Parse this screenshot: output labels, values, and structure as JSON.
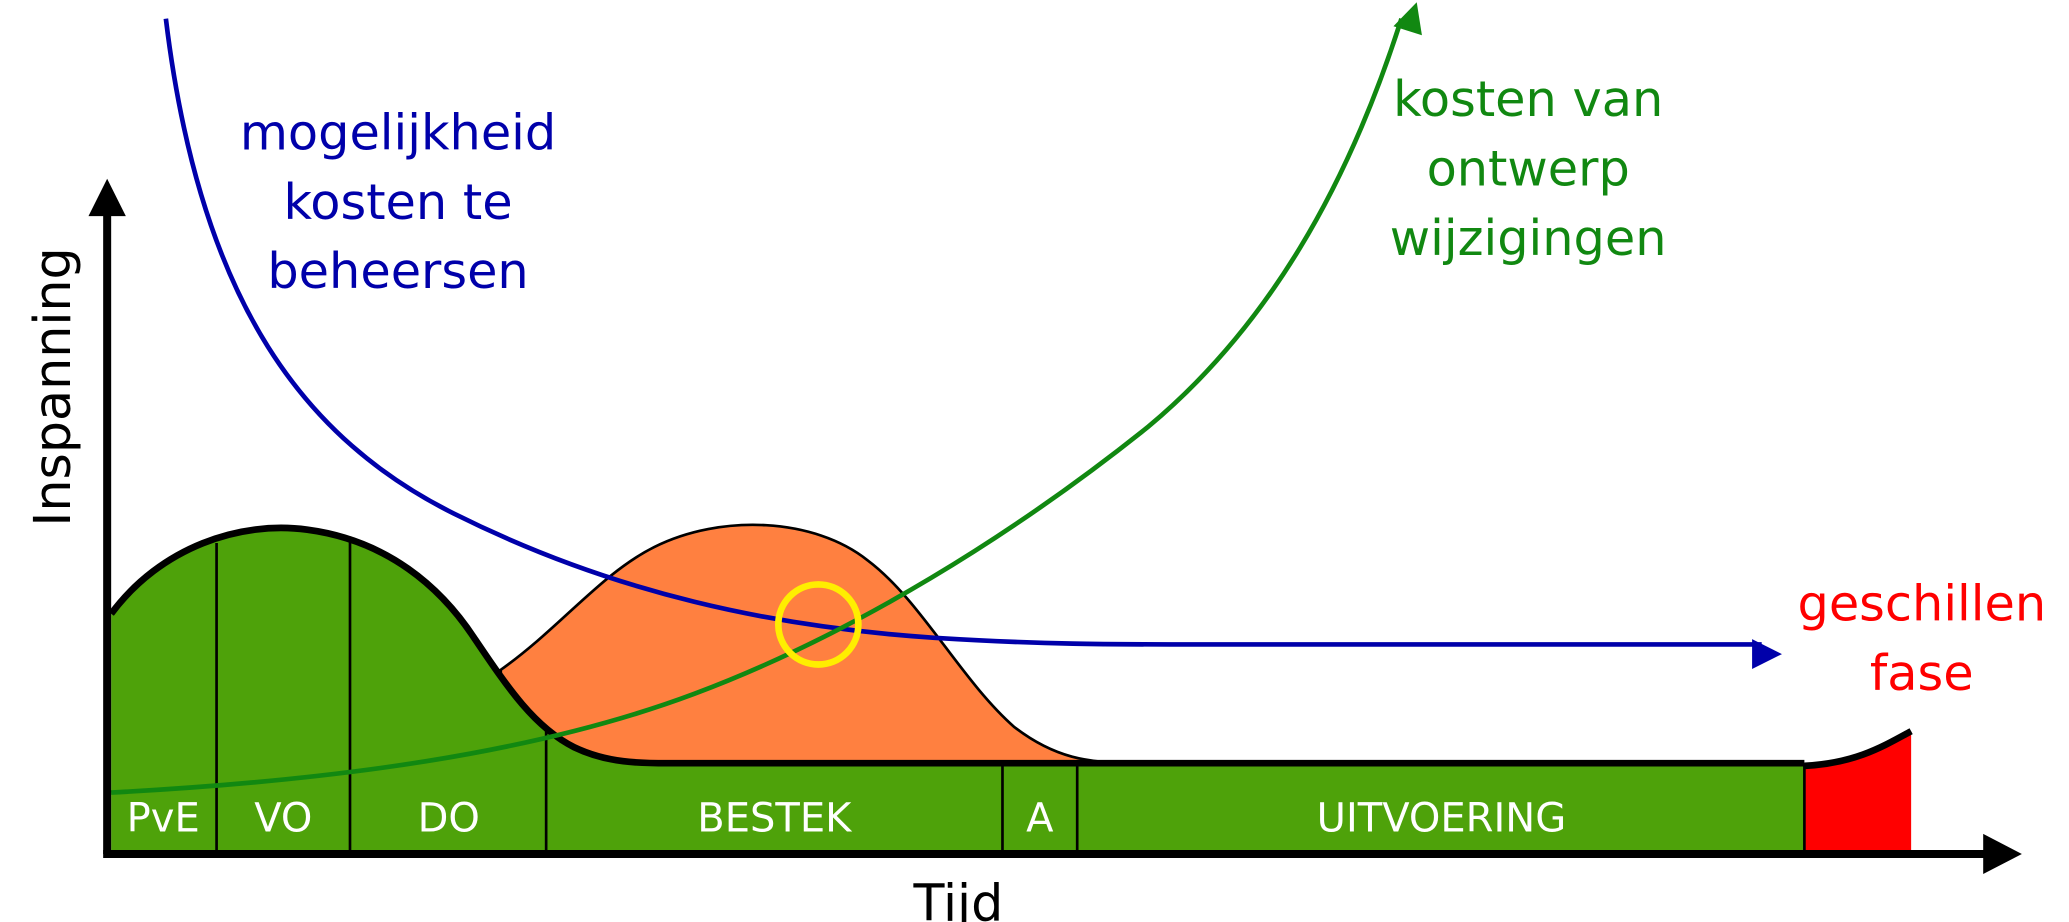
{
  "axes": {
    "y_label": "Inspanning",
    "x_label": "Tijd"
  },
  "phases": [
    "PvE",
    "VO",
    "DO",
    "BESTEK",
    "A",
    "UITVOERING"
  ],
  "annotations": {
    "control": [
      "mogelijkheid",
      "kosten te",
      "beheersen"
    ],
    "change_cost": [
      "kosten van",
      "ontwerp",
      "wijzigingen"
    ],
    "dispute": [
      "geschillen",
      "fase"
    ]
  }
}
